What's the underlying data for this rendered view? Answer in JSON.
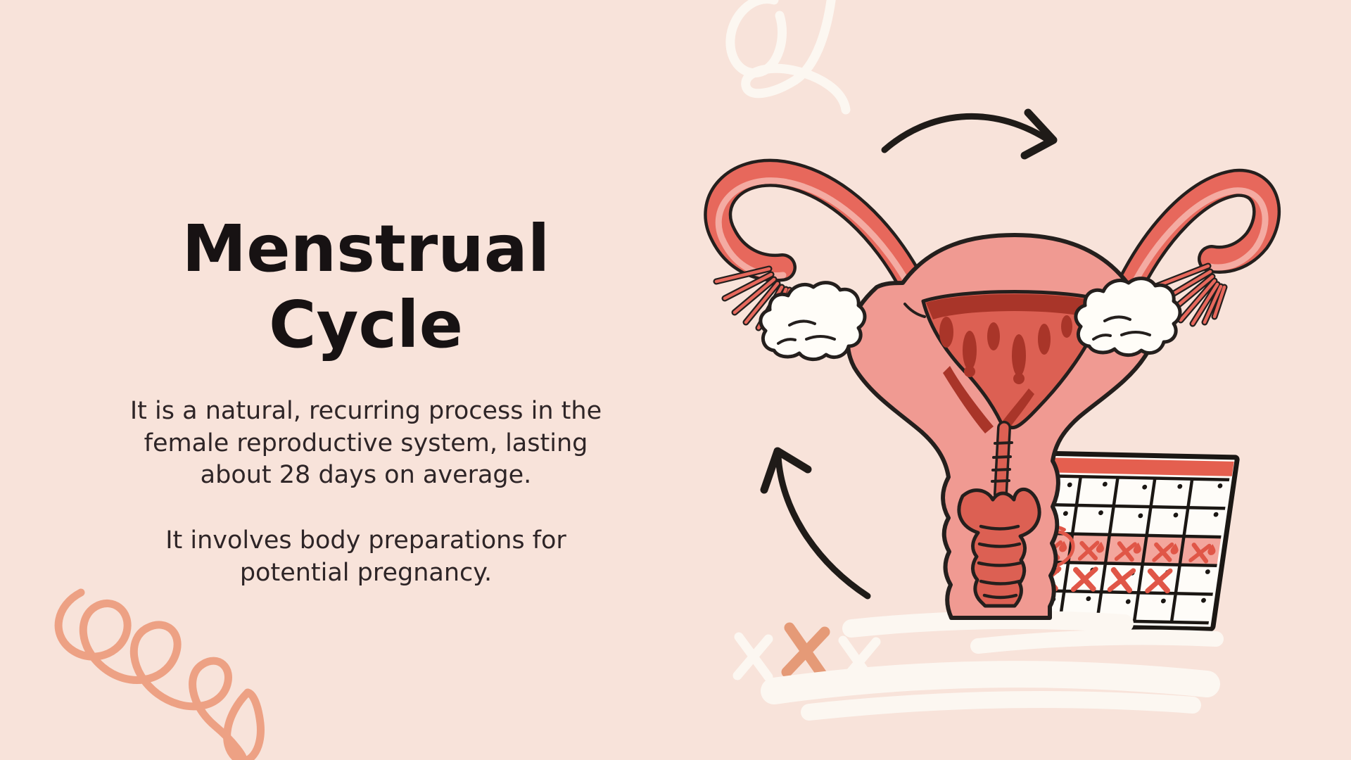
{
  "slide": {
    "title": "Menstrual\nCycle",
    "paragraph1": "It is a natural, recurring process in the\nfemale reproductive system, lasting\nabout 28 days on average.",
    "paragraph2": "It involves body preparations for\npotential pregnancy."
  },
  "colors": {
    "background": "#f8e3da",
    "title_text": "#171213",
    "body_text": "#2e2527",
    "uterus_pink": "#f09a92",
    "tube_salmon": "#e7685c",
    "tube_inner_stripe": "#f4aba2",
    "cavity_red": "#dc6053",
    "blood_dark_red": "#a93529",
    "outline_black": "#241f1d",
    "ovary_white": "#fffdf8",
    "arrow_black": "#1f1b18",
    "deco_white": "#fcf7f1",
    "deco_orange": "#eda184"
  },
  "calendar": {
    "columns": 6,
    "row_count": 5,
    "bg": "#fefcf8",
    "ink": "#1b1714",
    "header_color": "#e45f4f",
    "highlight_color": "#f3a69d",
    "mark_color": "#e05647",
    "rows": [
      [
        "dot",
        "dot",
        "dot",
        "dot",
        "dot",
        "dot"
      ],
      [
        "dot",
        "dot",
        "dot",
        "dot",
        "dot",
        "dot"
      ],
      [
        "dot",
        "x-drop-circled",
        "x-drop",
        "x-drop",
        "x-drop",
        "x-drop"
      ],
      [
        "x-dot",
        "x-dot",
        "x-dot",
        "x-dot",
        "x-dot",
        "dot"
      ],
      [
        "dot",
        "dot",
        "dot",
        "dot",
        "dot",
        "dot"
      ]
    ],
    "period_row_index": 2,
    "period_start_column": 1,
    "circled_cell_column": 1
  },
  "decorations": {
    "top_right": "white-loop-scribble",
    "bottom_left": "orange-spiral-scribble",
    "bottom_center_x_marks": [
      "white",
      "orange",
      "white"
    ]
  }
}
